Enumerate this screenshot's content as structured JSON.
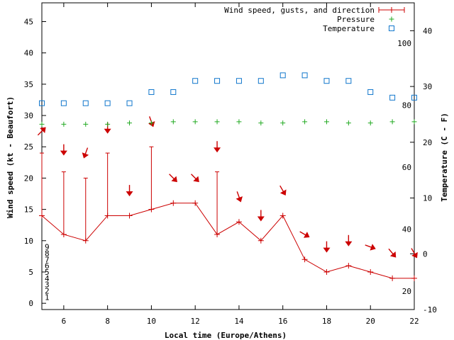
{
  "chart_data": {
    "type": "line",
    "xlabel": "Local time (Europe/Athens)",
    "ylabel_left": "Wind speed (kt - Beaufort)",
    "ylabel_right": "Temperature (C - F)",
    "xlim": [
      5,
      22
    ],
    "ylim_left": [
      -1,
      48
    ],
    "ylim_right_celsius": [
      -10,
      45
    ],
    "x_ticks": [
      6,
      8,
      10,
      12,
      14,
      16,
      18,
      20,
      22
    ],
    "y_ticks_left": [
      0,
      5,
      10,
      15,
      20,
      25,
      30,
      35,
      40,
      45
    ],
    "beaufort_labels": [
      {
        "value": 1,
        "label": "1"
      },
      {
        "value": 2,
        "label": "2"
      },
      {
        "value": 3,
        "label": "3"
      },
      {
        "value": 4,
        "label": "4"
      },
      {
        "value": 5,
        "label": "5"
      },
      {
        "value": 6,
        "label": "6"
      },
      {
        "value": 7,
        "label": "7"
      },
      {
        "value": 8,
        "label": "8"
      },
      {
        "value": 9,
        "label": "9"
      }
    ],
    "celsius_ticks": [
      -10,
      0,
      10,
      20,
      30,
      40
    ],
    "fahrenheit_labels": [
      {
        "value": 20,
        "label": "20"
      },
      {
        "value": 40,
        "label": "40"
      },
      {
        "value": 60,
        "label": "60"
      },
      {
        "value": 80,
        "label": "80"
      },
      {
        "value": 100,
        "label": "100"
      }
    ],
    "legend": {
      "wind": "Wind speed, gusts, and direction",
      "pressure": "Pressure",
      "temperature": "Temperature"
    },
    "colors": {
      "wind": "#cc0000",
      "pressure": "#22aa22",
      "temperature": "#1177cc"
    },
    "wind": {
      "x": [
        5,
        6,
        7,
        8,
        9,
        10,
        11,
        12,
        13,
        14,
        15,
        16,
        17,
        18,
        19,
        20,
        21,
        22
      ],
      "speed": [
        14,
        11,
        10,
        14,
        14,
        15,
        16,
        16,
        11,
        13,
        10,
        14,
        7,
        5,
        6,
        5,
        4,
        4
      ],
      "gust": [
        24,
        21,
        20,
        24,
        null,
        25,
        null,
        null,
        21,
        null,
        null,
        null,
        null,
        null,
        null,
        null,
        null,
        null
      ],
      "arrow_y": [
        27.5,
        24.5,
        24,
        28,
        18,
        29,
        20,
        20,
        25,
        17,
        14,
        18,
        11,
        9,
        10,
        9,
        8,
        8
      ],
      "direction_deg": [
        225,
        0,
        20,
        0,
        0,
        340,
        315,
        315,
        0,
        340,
        0,
        330,
        300,
        0,
        0,
        290,
        320,
        330
      ]
    },
    "pressure": {
      "x": [
        5,
        6,
        7,
        8,
        9,
        10,
        11,
        12,
        13,
        14,
        15,
        16,
        17,
        18,
        19,
        20,
        21,
        22
      ],
      "y": [
        28.6,
        28.6,
        28.6,
        28.6,
        28.8,
        28.8,
        29.0,
        29.0,
        29.0,
        29.0,
        28.8,
        28.8,
        29.0,
        29.0,
        28.8,
        28.8,
        29.0,
        29.0
      ]
    },
    "temperature": {
      "x": [
        5,
        6,
        7,
        8,
        9,
        10,
        11,
        12,
        13,
        14,
        15,
        16,
        17,
        18,
        19,
        20,
        21,
        22
      ],
      "celsius": [
        27,
        27,
        27,
        27,
        27,
        29,
        29,
        31,
        31,
        31,
        31,
        32,
        32,
        31,
        31,
        29,
        28,
        28
      ]
    }
  }
}
